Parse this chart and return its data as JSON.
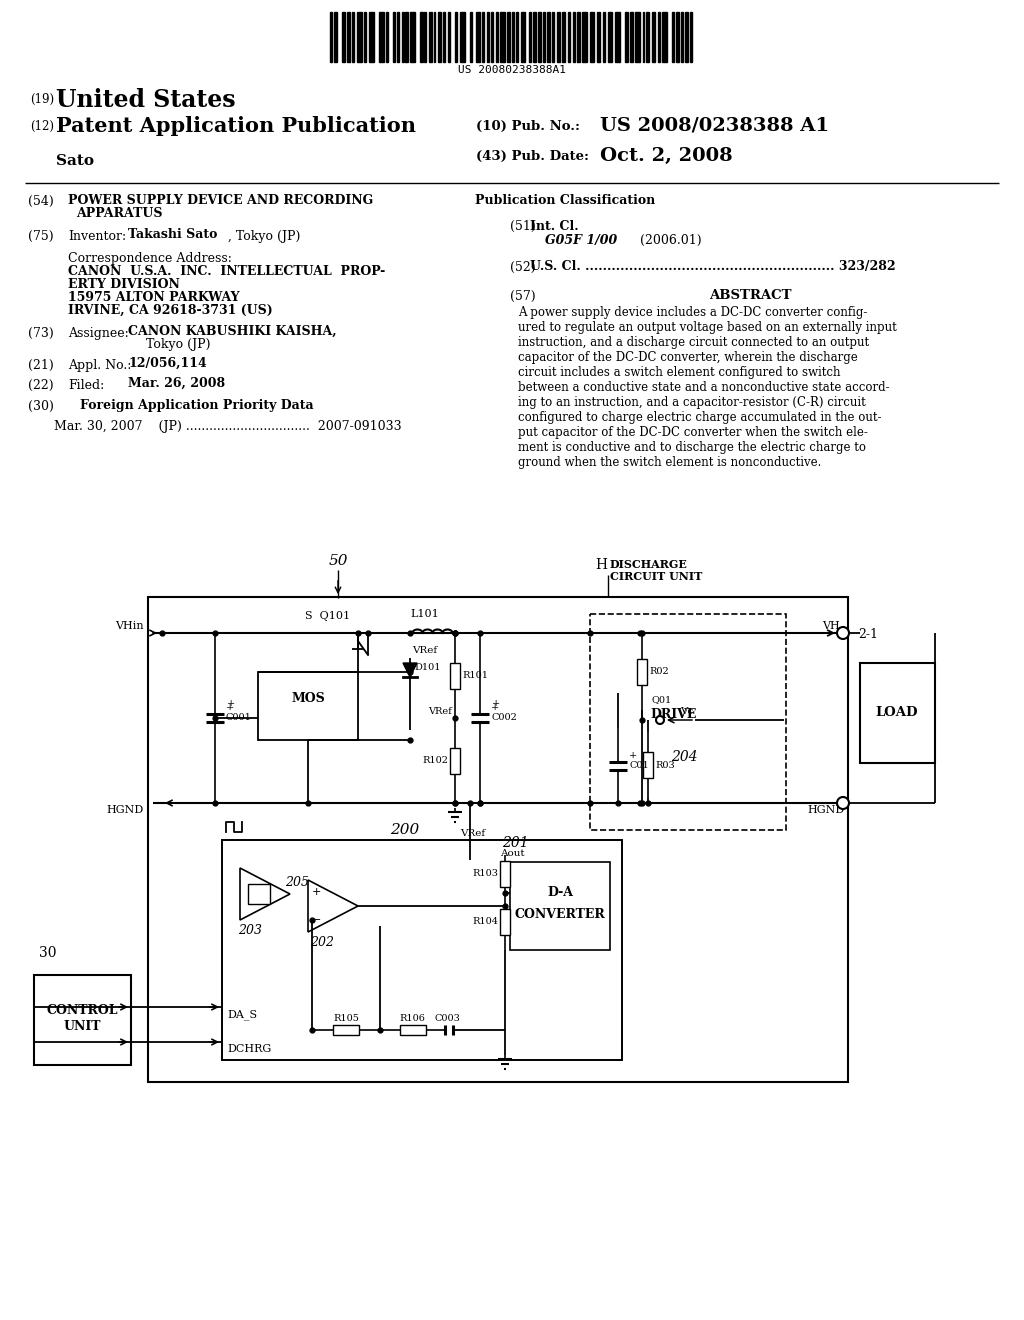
{
  "bg_color": "#ffffff",
  "barcode_text": "US 20080238388A1",
  "patent_number": "US 2008/0238388 A1",
  "pub_date": "Oct. 2, 2008",
  "header_country": "United States",
  "header_doctype": "Patent Application Publication",
  "header_applicant": "Sato",
  "header_field10": "(10) Pub. No.:",
  "header_field43": "(43) Pub. Date:",
  "f54_line1": "POWER SUPPLY DEVICE AND RECORDING",
  "f54_line2": "APPARATUS",
  "f75_inventor_label": "Inventor:",
  "f75_inventor_name": "Takashi Sato",
  "f75_inventor_loc": ", Tokyo (JP)",
  "corr_label": "Correspondence Address:",
  "corr_l1": "CANON  U.S.A.  INC.  INTELLECTUAL  PROP-",
  "corr_l2": "ERTY DIVISION",
  "corr_l3": "15975 ALTON PARKWAY",
  "corr_l4": "IRVINE, CA 92618-3731 (US)",
  "f73_label": "Assignee:",
  "f73_name": "CANON KABUSHIKI KAISHA,",
  "f73_loc": "Tokyo (JP)",
  "f21_label": "Appl. No.:",
  "f21_val": "12/056,114",
  "f22_label": "Filed:",
  "f22_val": "Mar. 26, 2008",
  "f30_title": "Foreign Application Priority Data",
  "priority": "Mar. 30, 2007    (JP) ................................  2007-091033",
  "pub_class": "Publication Classification",
  "f51_label": "Int. Cl.",
  "f51_code": "G05F 1/00",
  "f51_year": "(2006.01)",
  "f52_text": "U.S. Cl. ......................................................... 323/282",
  "abstract_title": "ABSTRACT",
  "abstract": "A power supply device includes a DC-DC converter config-\nured to regulate an output voltage based on an externally input\ninstruction, and a discharge circuit connected to an output\ncapacitor of the DC-DC converter, wherein the discharge\ncircuit includes a switch element configured to switch\nbetween a conductive state and a nonconductive state accord-\ning to an instruction, and a capacitor-resistor (C-R) circuit\nconfigured to charge electric charge accumulated in the out-\nput capacitor of the DC-DC converter when the switch ele-\nment is conductive and to discharge the electric charge to\nground when the switch element is nonconductive."
}
